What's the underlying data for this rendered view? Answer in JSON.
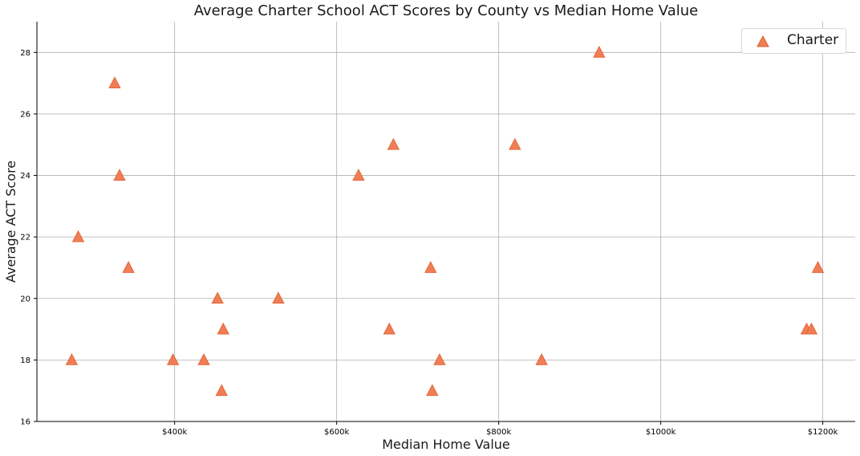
{
  "chart_data": {
    "type": "scatter",
    "title": "Average Charter School ACT Scores by County vs Median Home Value",
    "xlabel": "Median Home Value",
    "ylabel": "Average ACT Score",
    "xlim": [
      230000,
      1240000
    ],
    "ylim": [
      16,
      29
    ],
    "x_ticks": [
      400000,
      600000,
      800000,
      1000000,
      1200000
    ],
    "x_tick_labels": [
      "$400k",
      "$600k",
      "$800k",
      "$1000k",
      "$1200k"
    ],
    "y_ticks": [
      16,
      18,
      20,
      22,
      24,
      26,
      28
    ],
    "y_tick_labels": [
      "16",
      "18",
      "20",
      "22",
      "24",
      "26",
      "28"
    ],
    "grid": true,
    "legend_position": "top-right",
    "marker": "triangle",
    "series": [
      {
        "name": "Charter",
        "color": "#f07d55",
        "points": [
          {
            "x": 273000,
            "y": 18
          },
          {
            "x": 281000,
            "y": 22
          },
          {
            "x": 326000,
            "y": 27
          },
          {
            "x": 332000,
            "y": 24
          },
          {
            "x": 343000,
            "y": 21
          },
          {
            "x": 398000,
            "y": 18
          },
          {
            "x": 436000,
            "y": 18
          },
          {
            "x": 453000,
            "y": 20
          },
          {
            "x": 458000,
            "y": 17
          },
          {
            "x": 460000,
            "y": 19
          },
          {
            "x": 528000,
            "y": 20
          },
          {
            "x": 627000,
            "y": 24
          },
          {
            "x": 665000,
            "y": 19
          },
          {
            "x": 670000,
            "y": 25
          },
          {
            "x": 716000,
            "y": 21
          },
          {
            "x": 718000,
            "y": 17
          },
          {
            "x": 727000,
            "y": 18
          },
          {
            "x": 820000,
            "y": 25
          },
          {
            "x": 853000,
            "y": 18
          },
          {
            "x": 924000,
            "y": 28
          },
          {
            "x": 1180000,
            "y": 19
          },
          {
            "x": 1186000,
            "y": 19
          },
          {
            "x": 1194000,
            "y": 21
          }
        ]
      }
    ]
  }
}
